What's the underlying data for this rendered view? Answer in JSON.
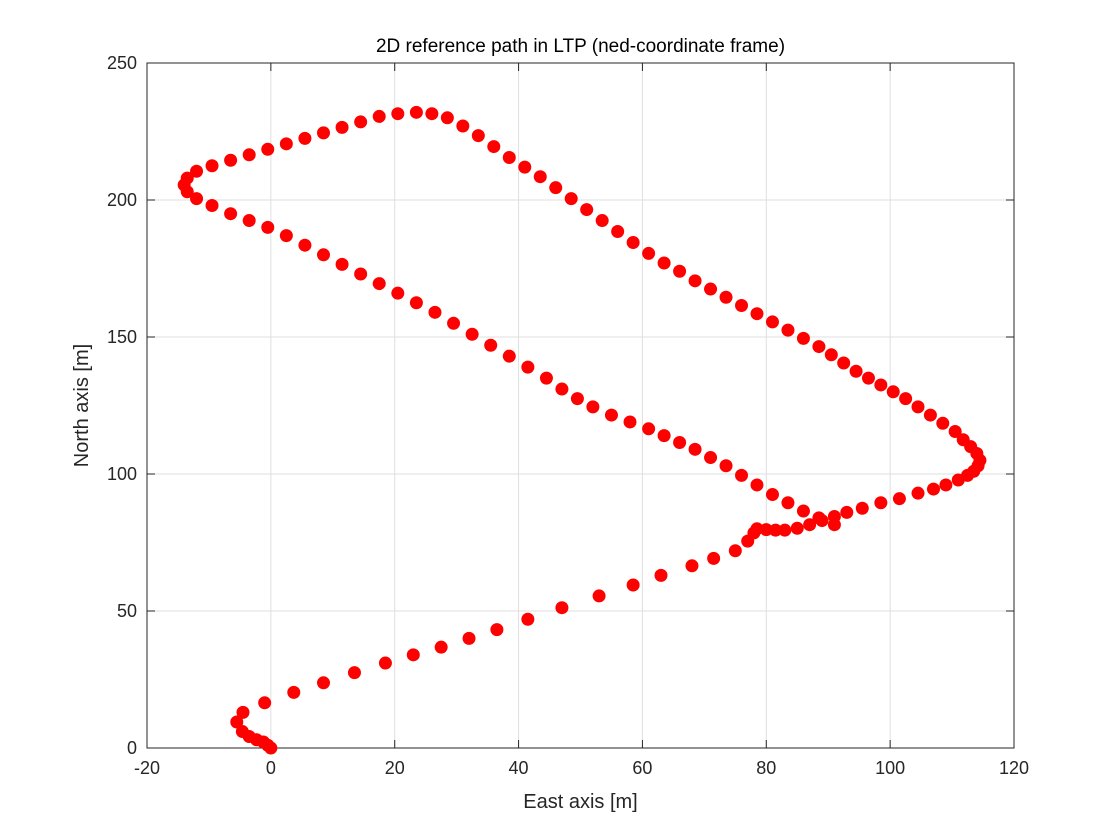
{
  "chart_data": {
    "type": "scatter",
    "title": "2D reference path in LTP (ned-coordinate frame)",
    "xlabel": "East axis [m]",
    "ylabel": "North axis [m]",
    "xlim": [
      -20,
      120
    ],
    "ylim": [
      0,
      250
    ],
    "xticks": [
      -20,
      0,
      20,
      40,
      60,
      80,
      100,
      120
    ],
    "yticks": [
      0,
      50,
      100,
      150,
      200,
      250
    ],
    "xtick_labels": [
      "-20",
      "0",
      "20",
      "40",
      "60",
      "80",
      "100",
      "120"
    ],
    "ytick_labels": [
      "0",
      "50",
      "100",
      "150",
      "200",
      "250"
    ],
    "grid": true,
    "marker_color": "#ff0000",
    "series": [
      {
        "points": [
          [
            0.0,
            0.0
          ],
          [
            -0.5,
            1.0
          ],
          [
            -1.2,
            2.2
          ],
          [
            -2.3,
            3.0
          ],
          [
            -3.5,
            4.2
          ],
          [
            -4.6,
            6.0
          ],
          [
            -5.5,
            9.5
          ],
          [
            -4.5,
            13.0
          ],
          [
            -1.0,
            16.5
          ],
          [
            3.7,
            20.3
          ],
          [
            8.5,
            23.8
          ],
          [
            13.5,
            27.5
          ],
          [
            18.5,
            31.0
          ],
          [
            23.0,
            34.0
          ],
          [
            27.5,
            36.8
          ],
          [
            32.0,
            40.0
          ],
          [
            36.5,
            43.2
          ],
          [
            41.5,
            47.0
          ],
          [
            47.0,
            51.2
          ],
          [
            53.0,
            55.5
          ],
          [
            58.5,
            59.5
          ],
          [
            63.0,
            63.0
          ],
          [
            68.0,
            66.5
          ],
          [
            71.5,
            69.2
          ],
          [
            75.0,
            72.0
          ],
          [
            77.0,
            75.5
          ],
          [
            78.0,
            78.5
          ],
          [
            78.5,
            80.0
          ],
          [
            80.0,
            79.7
          ],
          [
            81.5,
            79.5
          ],
          [
            83.0,
            79.5
          ],
          [
            85.0,
            80.2
          ],
          [
            87.0,
            81.5
          ],
          [
            89.0,
            83.0
          ],
          [
            91.0,
            84.5
          ],
          [
            93.0,
            86.0
          ],
          [
            95.5,
            87.5
          ],
          [
            98.5,
            89.5
          ],
          [
            101.5,
            91.0
          ],
          [
            104.5,
            93.0
          ],
          [
            107.0,
            94.5
          ],
          [
            109.0,
            96.0
          ],
          [
            111.0,
            97.8
          ],
          [
            112.5,
            99.5
          ],
          [
            113.5,
            101.0
          ],
          [
            114.2,
            103.0
          ],
          [
            114.5,
            105.0
          ],
          [
            114.0,
            107.5
          ],
          [
            113.0,
            110.0
          ],
          [
            111.8,
            112.5
          ],
          [
            110.5,
            115.5
          ],
          [
            108.5,
            118.5
          ],
          [
            106.5,
            121.5
          ],
          [
            104.5,
            124.5
          ],
          [
            102.5,
            127.5
          ],
          [
            100.5,
            130.0
          ],
          [
            98.5,
            132.5
          ],
          [
            96.5,
            135.0
          ],
          [
            94.5,
            137.5
          ],
          [
            92.5,
            140.5
          ],
          [
            90.5,
            143.5
          ],
          [
            88.5,
            146.5
          ],
          [
            86.0,
            149.5
          ],
          [
            83.5,
            152.5
          ],
          [
            81.0,
            155.5
          ],
          [
            78.5,
            158.5
          ],
          [
            76.0,
            161.5
          ],
          [
            73.5,
            164.5
          ],
          [
            71.0,
            167.5
          ],
          [
            68.5,
            170.5
          ],
          [
            66.0,
            174.0
          ],
          [
            63.5,
            177.0
          ],
          [
            61.0,
            180.5
          ],
          [
            58.5,
            184.5
          ],
          [
            56.0,
            188.5
          ],
          [
            53.5,
            192.5
          ],
          [
            51.0,
            196.5
          ],
          [
            48.5,
            200.5
          ],
          [
            46.0,
            204.5
          ],
          [
            43.5,
            208.5
          ],
          [
            41.0,
            212.0
          ],
          [
            38.5,
            215.5
          ],
          [
            36.0,
            219.5
          ],
          [
            33.5,
            223.5
          ],
          [
            31.0,
            227.0
          ],
          [
            28.5,
            230.0
          ],
          [
            26.0,
            231.5
          ],
          [
            23.5,
            232.0
          ],
          [
            20.5,
            231.5
          ],
          [
            17.5,
            230.5
          ],
          [
            14.5,
            228.5
          ],
          [
            11.5,
            226.5
          ],
          [
            8.5,
            224.5
          ],
          [
            5.5,
            222.5
          ],
          [
            2.5,
            220.5
          ],
          [
            -0.5,
            218.5
          ],
          [
            -3.5,
            216.5
          ],
          [
            -6.5,
            214.5
          ],
          [
            -9.5,
            212.5
          ],
          [
            -12.0,
            210.5
          ],
          [
            -13.5,
            208.0
          ],
          [
            -14.0,
            205.5
          ],
          [
            -13.5,
            203.0
          ],
          [
            -12.0,
            200.5
          ],
          [
            -9.5,
            198.0
          ],
          [
            -6.5,
            195.0
          ],
          [
            -3.5,
            192.5
          ],
          [
            -0.5,
            190.0
          ],
          [
            2.5,
            187.0
          ],
          [
            5.5,
            183.5
          ],
          [
            8.5,
            180.0
          ],
          [
            11.5,
            176.5
          ],
          [
            14.5,
            173.0
          ],
          [
            17.5,
            169.5
          ],
          [
            20.5,
            166.0
          ],
          [
            23.5,
            162.5
          ],
          [
            26.5,
            159.0
          ],
          [
            29.5,
            155.0
          ],
          [
            32.5,
            151.0
          ],
          [
            35.5,
            147.0
          ],
          [
            38.5,
            143.0
          ],
          [
            41.5,
            139.0
          ],
          [
            44.5,
            135.0
          ],
          [
            47.0,
            131.0
          ],
          [
            49.5,
            127.5
          ],
          [
            52.0,
            124.5
          ],
          [
            55.0,
            121.5
          ],
          [
            58.0,
            119.0
          ],
          [
            61.0,
            116.5
          ],
          [
            63.5,
            114.0
          ],
          [
            66.0,
            111.5
          ],
          [
            68.5,
            109.0
          ],
          [
            71.0,
            106.0
          ],
          [
            73.5,
            103.0
          ],
          [
            76.0,
            99.5
          ],
          [
            78.5,
            96.0
          ],
          [
            81.0,
            92.5
          ],
          [
            83.5,
            89.5
          ],
          [
            86.0,
            86.5
          ],
          [
            88.5,
            84.0
          ],
          [
            91.0,
            81.5
          ]
        ]
      }
    ]
  }
}
